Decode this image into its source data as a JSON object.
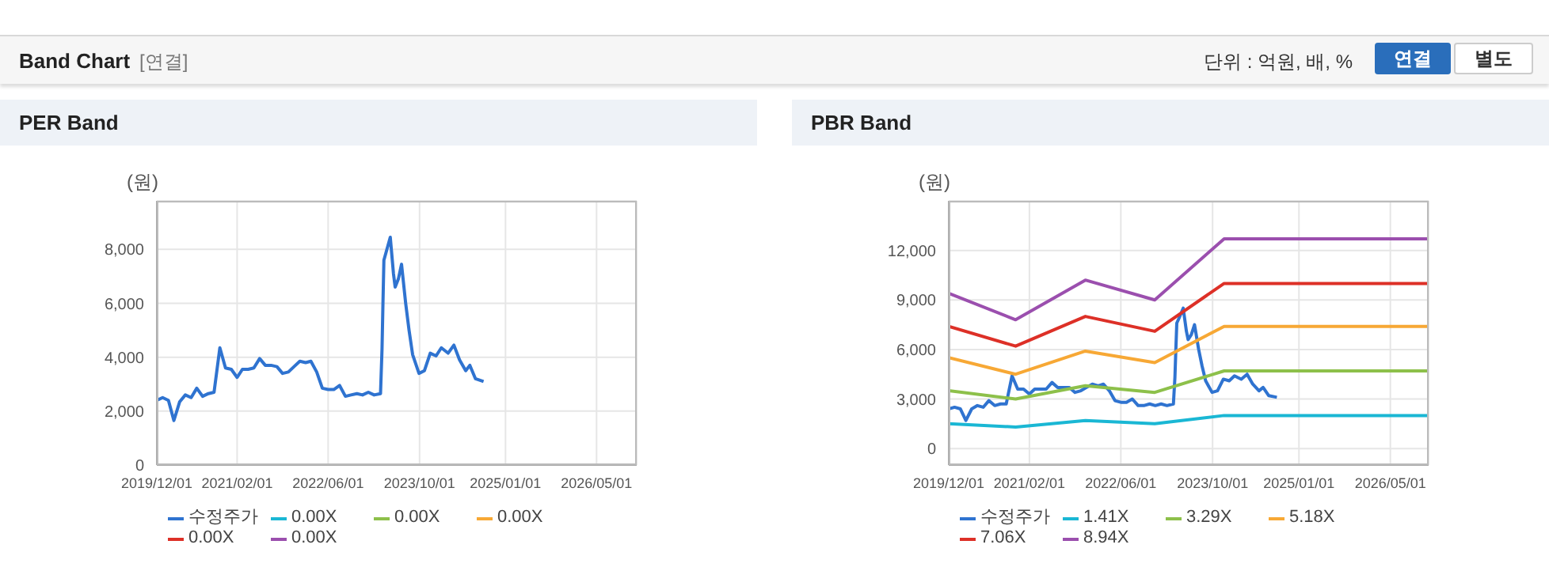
{
  "chart_data": [
    {
      "type": "line",
      "title": "PER Band",
      "ylabel": "(원)",
      "annotations": [
        "Band Chart",
        "[연결]",
        "단위 : 억원, 배, %",
        "연결",
        "별도"
      ],
      "x": [
        "2019-12",
        "2020-01",
        "2020-02",
        "2020-03",
        "2020-04",
        "2020-05",
        "2020-06",
        "2020-07",
        "2020-08",
        "2020-09",
        "2020-10",
        "2020-11",
        "2020-12",
        "2021-01",
        "2021-02",
        "2021-03",
        "2021-04",
        "2021-05",
        "2021-06",
        "2021-07",
        "2021-08",
        "2021-09",
        "2021-10",
        "2021-11",
        "2021-12",
        "2022-01",
        "2022-02",
        "2022-03",
        "2022-04",
        "2022-05",
        "2022-06",
        "2022-07",
        "2022-08",
        "2022-09",
        "2022-10",
        "2022-11",
        "2022-12",
        "2023-01",
        "2023-02",
        "2023-03-07",
        "2023-03-15",
        "2023-03-20",
        "2023-03-25",
        "2023-04-06",
        "2023-04-28",
        "2023-05-15",
        "2023-05-24",
        "2023-06-10",
        "2023-06-27",
        "2023-07-19",
        "2023-08-06",
        "2023-08-25",
        "2023-09-28",
        "2023-10-27",
        "2023-11-27",
        "2023-12-28",
        "2024-01-25",
        "2024-03-01",
        "2024-04-01",
        "2024-05-01",
        "2024-06-03",
        "2024-06-25",
        "2024-07-25",
        "2024-09-06"
      ],
      "series": [
        {
          "name": "수정주가",
          "color": "#2f73d0",
          "values": [
            2400,
            2500,
            2400,
            1650,
            2350,
            2600,
            2500,
            2850,
            2550,
            2650,
            2700,
            4350,
            3600,
            3550,
            3250,
            3550,
            3550,
            3600,
            3950,
            3700,
            3700,
            3650,
            3400,
            3450,
            3650,
            3850,
            3800,
            3850,
            3450,
            2850,
            2800,
            2800,
            2950,
            2550,
            2600,
            2650,
            2600,
            2700,
            2600,
            2650,
            4300,
            6000,
            7600,
            7900,
            8450,
            7100,
            6600,
            6900,
            7450,
            6000,
            5000,
            4100,
            3400,
            3500,
            4150,
            4050,
            4350,
            4150,
            4450,
            3900,
            3500,
            3700,
            3200,
            3100
          ]
        },
        {
          "name": "0.00X",
          "color": "#1ab7d4",
          "values": [
            null,
            null,
            null,
            null,
            null,
            null,
            null,
            null,
            null,
            null,
            null,
            null,
            null,
            null,
            null,
            null,
            null,
            null,
            null,
            null,
            null,
            null,
            null,
            null,
            null,
            null,
            null,
            null,
            null,
            null,
            null,
            null,
            null,
            null,
            null,
            null,
            null,
            null,
            null,
            null,
            null,
            null,
            null,
            null,
            null,
            null,
            null,
            null,
            null,
            null,
            null,
            null,
            null,
            null,
            null,
            null,
            null,
            null,
            null,
            null,
            null,
            null,
            null,
            null
          ]
        },
        {
          "name": "0.00X",
          "color": "#8dc04a",
          "values": [
            null,
            null,
            null,
            null,
            null,
            null,
            null,
            null,
            null,
            null,
            null,
            null,
            null,
            null,
            null,
            null,
            null,
            null,
            null,
            null,
            null,
            null,
            null,
            null,
            null,
            null,
            null,
            null,
            null,
            null,
            null,
            null,
            null,
            null,
            null,
            null,
            null,
            null,
            null,
            null,
            null,
            null,
            null,
            null,
            null,
            null,
            null,
            null,
            null,
            null,
            null,
            null,
            null,
            null,
            null,
            null,
            null,
            null,
            null,
            null,
            null,
            null,
            null,
            null
          ]
        },
        {
          "name": "0.00X",
          "color": "#f7a835",
          "values": [
            null,
            null,
            null,
            null,
            null,
            null,
            null,
            null,
            null,
            null,
            null,
            null,
            null,
            null,
            null,
            null,
            null,
            null,
            null,
            null,
            null,
            null,
            null,
            null,
            null,
            null,
            null,
            null,
            null,
            null,
            null,
            null,
            null,
            null,
            null,
            null,
            null,
            null,
            null,
            null,
            null,
            null,
            null,
            null,
            null,
            null,
            null,
            null,
            null,
            null,
            null,
            null,
            null,
            null,
            null,
            null,
            null,
            null,
            null,
            null,
            null,
            null,
            null,
            null
          ]
        },
        {
          "name": "0.00X",
          "color": "#dd3027",
          "values": [
            null,
            null,
            null,
            null,
            null,
            null,
            null,
            null,
            null,
            null,
            null,
            null,
            null,
            null,
            null,
            null,
            null,
            null,
            null,
            null,
            null,
            null,
            null,
            null,
            null,
            null,
            null,
            null,
            null,
            null,
            null,
            null,
            null,
            null,
            null,
            null,
            null,
            null,
            null,
            null,
            null,
            null,
            null,
            null,
            null,
            null,
            null,
            null,
            null,
            null,
            null,
            null,
            null,
            null,
            null,
            null,
            null,
            null,
            null,
            null,
            null,
            null,
            null,
            null
          ]
        },
        {
          "name": "0.00X",
          "color": "#9b4fae",
          "values": [
            null,
            null,
            null,
            null,
            null,
            null,
            null,
            null,
            null,
            null,
            null,
            null,
            null,
            null,
            null,
            null,
            null,
            null,
            null,
            null,
            null,
            null,
            null,
            null,
            null,
            null,
            null,
            null,
            null,
            null,
            null,
            null,
            null,
            null,
            null,
            null,
            null,
            null,
            null,
            null,
            null,
            null,
            null,
            null,
            null,
            null,
            null,
            null,
            null,
            null,
            null,
            null,
            null,
            null,
            null,
            null,
            null,
            null,
            null,
            null,
            null,
            null,
            null,
            null
          ]
        }
      ],
      "xlim": [
        "2019-12-01",
        "2026-12-01"
      ],
      "xticks": [
        {
          "value": "2019-12-01",
          "label": "2019/12/01"
        },
        {
          "value": "2021-02-01",
          "label": "2021/02/01"
        },
        {
          "value": "2022-06-01",
          "label": "2022/06/01"
        },
        {
          "value": "2023-10-01",
          "label": "2023/10/01"
        },
        {
          "value": "2025-01-01",
          "label": "2025/01/01"
        },
        {
          "value": "2026-05-01",
          "label": "2026/05/01"
        }
      ],
      "ylim": [
        0,
        9800
      ],
      "yticks": [
        0,
        {
          "value": 2000,
          "label": "2,000"
        },
        {
          "value": 4000,
          "label": "4,000"
        },
        {
          "value": 6000,
          "label": "6,000"
        },
        {
          "value": 8000,
          "label": "8,000"
        }
      ],
      "grid": true,
      "legend": "bottom",
      "marker": "none",
      "line_style": "solid"
    },
    {
      "type": "line",
      "title": "PBR Band",
      "ylabel": "(원)",
      "x": [
        "2019-12",
        "2020-01",
        "2020-02",
        "2020-03",
        "2020-04",
        "2020-05",
        "2020-06",
        "2020-07",
        "2020-08",
        "2020-09",
        "2020-10",
        "2020-11",
        "2020-12",
        "2021-01",
        "2021-02",
        "2021-03",
        "2021-04",
        "2021-05",
        "2021-06",
        "2021-07",
        "2021-08",
        "2021-09",
        "2021-10",
        "2021-11",
        "2021-12",
        "2022-01",
        "2022-02",
        "2022-03",
        "2022-04",
        "2022-05",
        "2022-06",
        "2022-07",
        "2022-08",
        "2022-09",
        "2022-10",
        "2022-11",
        "2022-12",
        "2023-01",
        "2023-02",
        "2023-03-07",
        "2023-03-15",
        "2023-03-20",
        "2023-03-25",
        "2023-04-06",
        "2023-04-28",
        "2023-05-15",
        "2023-05-24",
        "2023-06-10",
        "2023-06-27",
        "2023-07-19",
        "2023-08-06",
        "2023-08-25",
        "2023-09-28",
        "2023-10-27",
        "2023-11-27",
        "2023-12-28",
        "2024-01-25",
        "2024-03-01",
        "2024-04-01",
        "2024-05-01",
        "2024-06-03",
        "2024-06-25",
        "2024-07-25",
        "2024-09-06"
      ],
      "series": [
        {
          "name": "수정주가",
          "color": "#2f73d0",
          "values": [
            2400,
            2500,
            2400,
            1700,
            2400,
            2600,
            2500,
            2900,
            2600,
            2700,
            2700,
            4400,
            3600,
            3600,
            3300,
            3600,
            3600,
            3600,
            4000,
            3700,
            3700,
            3700,
            3400,
            3500,
            3700,
            3900,
            3800,
            3900,
            3500,
            2900,
            2800,
            2800,
            3000,
            2600,
            2600,
            2700,
            2600,
            2700,
            2600,
            2700,
            4300,
            6000,
            7600,
            7900,
            8500,
            7100,
            6600,
            6900,
            7500,
            6000,
            5000,
            4100,
            3400,
            3500,
            4200,
            4100,
            4400,
            4200,
            4500,
            3900,
            3500,
            3700,
            3200,
            3100
          ]
        },
        {
          "name": "1.41X",
          "color": "#1ab7d4",
          "x": [
            "2019-12-01",
            "2020-11-20",
            "2021-11-25",
            "2022-11-28",
            "2023-12-01",
            "2026-11-20"
          ],
          "values": [
            1500,
            1300,
            1700,
            1500,
            2000,
            2000
          ]
        },
        {
          "name": "3.29X",
          "color": "#8dc04a",
          "x": [
            "2019-12-01",
            "2020-11-20",
            "2021-11-25",
            "2022-11-28",
            "2023-12-01",
            "2026-11-20"
          ],
          "values": [
            3500,
            3000,
            3800,
            3400,
            4700,
            4700
          ]
        },
        {
          "name": "5.18X",
          "color": "#f7a835",
          "x": [
            "2019-12-01",
            "2020-11-20",
            "2021-11-25",
            "2022-11-28",
            "2023-12-01",
            "2026-11-20"
          ],
          "values": [
            5500,
            4500,
            5900,
            5200,
            7400,
            7400
          ]
        },
        {
          "name": "7.06X",
          "color": "#dd3027",
          "x": [
            "2019-12-01",
            "2020-11-20",
            "2021-11-25",
            "2022-11-28",
            "2023-12-01",
            "2026-11-20"
          ],
          "values": [
            7400,
            6200,
            8000,
            7100,
            10000,
            10000
          ]
        },
        {
          "name": "8.94X",
          "color": "#9b4fae",
          "x": [
            "2019-12-01",
            "2020-11-20",
            "2021-11-25",
            "2022-11-28",
            "2023-12-01",
            "2026-11-20"
          ],
          "values": [
            9400,
            7800,
            10200,
            9000,
            12700,
            12700
          ]
        }
      ],
      "xlim": [
        "2019-12-01",
        "2026-11-20"
      ],
      "xticks": [
        {
          "value": "2019-12-01",
          "label": "2019/12/01"
        },
        {
          "value": "2021-02-01",
          "label": "2021/02/01"
        },
        {
          "value": "2022-06-01",
          "label": "2022/06/01"
        },
        {
          "value": "2023-10-01",
          "label": "2023/10/01"
        },
        {
          "value": "2025-01-01",
          "label": "2025/01/01"
        },
        {
          "value": "2026-05-01",
          "label": "2026/05/01"
        }
      ],
      "ylim": [
        -1000,
        15000
      ],
      "yticks": [
        0,
        {
          "value": 3000,
          "label": "3,000"
        },
        {
          "value": 6000,
          "label": "6,000"
        },
        {
          "value": 9000,
          "label": "9,000"
        },
        {
          "value": 12000,
          "label": "12,000"
        }
      ],
      "grid": true,
      "legend": "bottom",
      "marker": "none",
      "line_style": "solid"
    }
  ]
}
